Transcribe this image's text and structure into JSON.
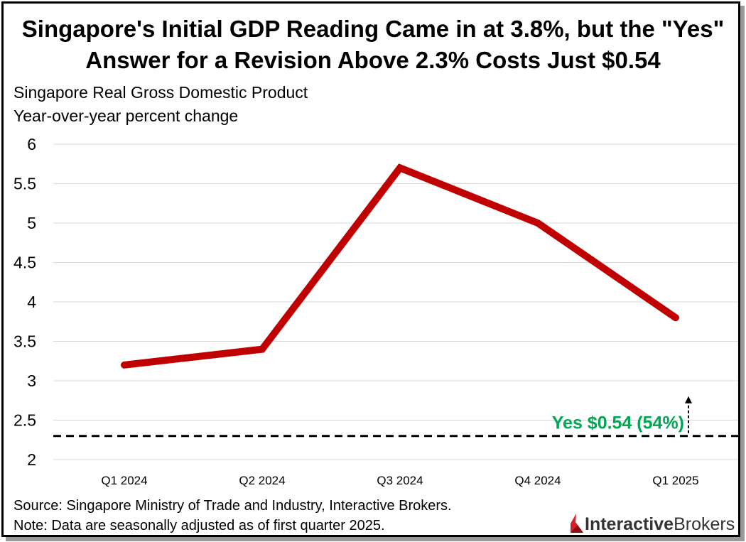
{
  "header": {
    "title_line1": "Singapore's Initial GDP Reading Came in at 3.8%, but the \"Yes\"",
    "title_line2": "Answer for a Revision Above 2.3% Costs Just $0.54",
    "subtitle_line1": "Singapore Real Gross Domestic Product",
    "subtitle_line2": "Year-over-year percent change"
  },
  "footer": {
    "source": "Source: Singapore Ministry of Trade and Industry, Interactive Brokers.",
    "note": "Note: Data are seasonally adjusted as of first quarter 2025.",
    "brand_bold": "Interactive",
    "brand_light": "Brokers"
  },
  "colors": {
    "line": "#c00000",
    "annotation": "#00a651",
    "grid": "#d9d9d9",
    "threshold": "#000000"
  },
  "chart_data": {
    "type": "line",
    "categories": [
      "Q1 2024",
      "Q2 2024",
      "Q3 2024",
      "Q4 2024",
      "Q1 2025"
    ],
    "series": [
      {
        "values": [
          3.2,
          3.4,
          5.7,
          5.0,
          3.8
        ]
      }
    ],
    "ylim": [
      2,
      6
    ],
    "yticks": [
      "2",
      "2.5",
      "3",
      "3.5",
      "4",
      "4.5",
      "5",
      "5.5",
      "6"
    ],
    "grid": true,
    "threshold": {
      "value": 2.3,
      "style": "dashed"
    },
    "annotation": {
      "text": "Yes $0.54 (54%)",
      "arrow": "up"
    }
  }
}
